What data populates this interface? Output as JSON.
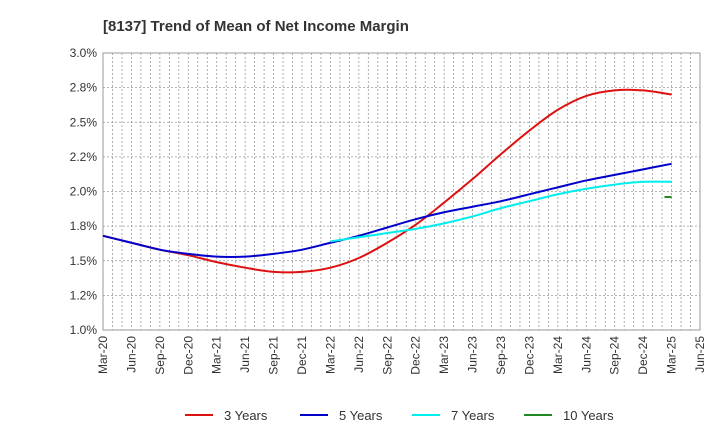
{
  "chart_data": {
    "type": "line",
    "title": "[8137]  Trend of Mean of Net Income Margin",
    "xlabel": "",
    "ylabel": "",
    "ylim": [
      1.0,
      3.0
    ],
    "y_ticks": [
      {
        "value": 1.0,
        "label": "1.0%"
      },
      {
        "value": 1.25,
        "label": "1.2%"
      },
      {
        "value": 1.5,
        "label": "1.5%"
      },
      {
        "value": 1.75,
        "label": "1.8%"
      },
      {
        "value": 2.0,
        "label": "2.0%"
      },
      {
        "value": 2.25,
        "label": "2.2%"
      },
      {
        "value": 2.5,
        "label": "2.5%"
      },
      {
        "value": 2.75,
        "label": "2.8%"
      },
      {
        "value": 3.0,
        "label": "3.0%"
      }
    ],
    "categories": [
      "Mar-20",
      "Jun-20",
      "Sep-20",
      "Dec-20",
      "Mar-21",
      "Jun-21",
      "Sep-21",
      "Dec-21",
      "Mar-22",
      "Jun-22",
      "Sep-22",
      "Dec-22",
      "Mar-23",
      "Jun-23",
      "Sep-23",
      "Dec-23",
      "Mar-24",
      "Jun-24",
      "Sep-24",
      "Dec-24",
      "Mar-25",
      "Jun-25"
    ],
    "grid": true,
    "legend_position": "bottom",
    "series": [
      {
        "name": "3 Years",
        "color": "#dd1111",
        "values": [
          1.68,
          1.63,
          1.58,
          1.54,
          1.49,
          1.45,
          1.42,
          1.42,
          1.45,
          1.52,
          1.63,
          1.76,
          1.92,
          2.09,
          2.27,
          2.44,
          2.59,
          2.69,
          2.73,
          2.73,
          2.7,
          null
        ]
      },
      {
        "name": "5 Years",
        "color": "#0000cc",
        "values": [
          1.68,
          1.63,
          1.58,
          1.55,
          1.53,
          1.53,
          1.55,
          1.58,
          1.63,
          1.68,
          1.74,
          1.8,
          1.85,
          1.89,
          1.93,
          1.98,
          2.03,
          2.08,
          2.12,
          2.16,
          2.2,
          null
        ]
      },
      {
        "name": "7 Years",
        "color": "#00eeee",
        "values": [
          null,
          null,
          null,
          null,
          null,
          null,
          null,
          null,
          1.64,
          1.67,
          1.7,
          1.73,
          1.77,
          1.82,
          1.88,
          1.93,
          1.98,
          2.02,
          2.05,
          2.07,
          2.07,
          null
        ]
      },
      {
        "name": "10 Years",
        "color": "#228822",
        "values": [
          null,
          null,
          null,
          null,
          null,
          null,
          null,
          null,
          null,
          null,
          null,
          null,
          null,
          null,
          null,
          null,
          null,
          null,
          null,
          null,
          1.96,
          null
        ],
        "segment_from_offset": -0.25
      }
    ]
  }
}
